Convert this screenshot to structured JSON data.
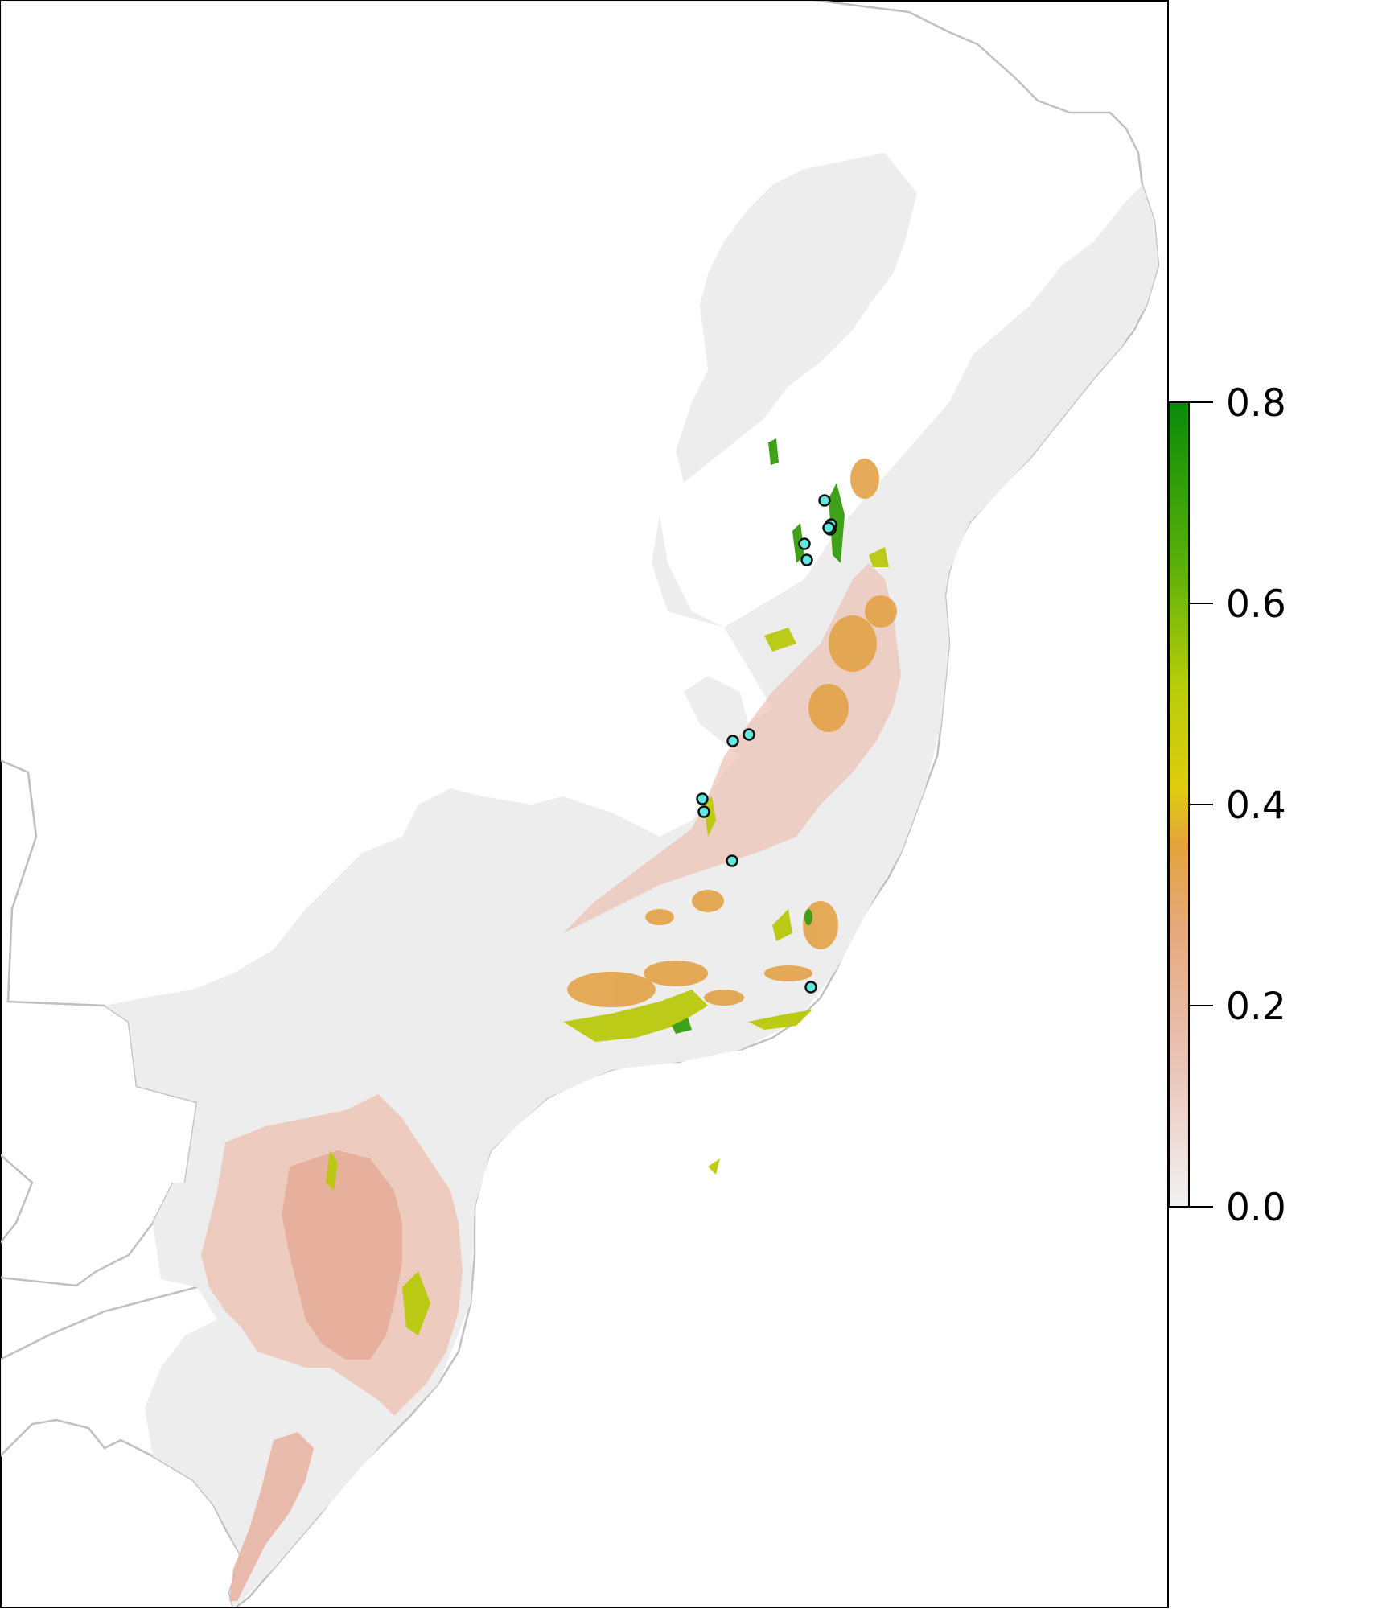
{
  "map": {
    "legend": {
      "min": 0.0,
      "max": 0.8,
      "ticks": [
        {
          "value": 0.0,
          "label": "0.0"
        },
        {
          "value": 0.2,
          "label": "0.2"
        },
        {
          "value": 0.4,
          "label": "0.4"
        },
        {
          "value": 0.6,
          "label": "0.6"
        },
        {
          "value": 0.8,
          "label": "0.8"
        }
      ],
      "colors": {
        "low": "#f2f2f2",
        "pink": "#e8b0a0",
        "orange": "#e3a04a",
        "yellow": "#e6d410",
        "lime": "#9cc40c",
        "green": "#0a8a0a"
      }
    },
    "layer_colors": {
      "ocean": "#ffffff",
      "border": "#bdbdbd",
      "suitability_zero": "#efefef",
      "low_suitability": "#e9b9a8",
      "occurrence_fill": "#5ee8e0",
      "occurrence_stroke": "#111111"
    },
    "occurrence_point_count": 12
  }
}
